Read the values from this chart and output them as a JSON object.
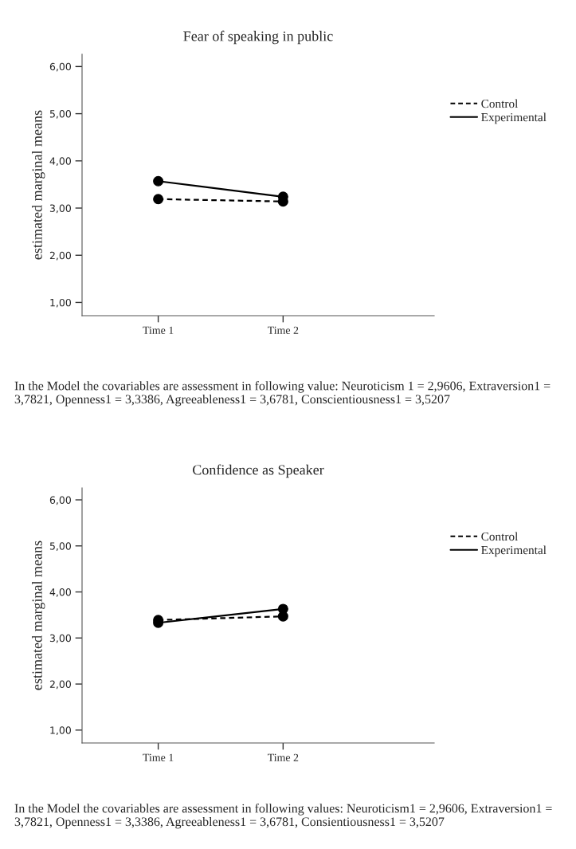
{
  "chart_data": [
    {
      "type": "line",
      "title": "Fear of speaking in public",
      "ylabel": "estimated marginal means",
      "categories": [
        "Time 1",
        "Time 2"
      ],
      "series": [
        {
          "name": "Control",
          "color": "#000000",
          "line_style": "dashed",
          "values": [
            3.19,
            3.14
          ]
        },
        {
          "name": "Experimental",
          "color": "#000000",
          "line_style": "solid",
          "values": [
            3.57,
            3.24
          ]
        }
      ],
      "ylim": [
        0.72,
        6.26
      ],
      "yticks": [
        {
          "value": 1,
          "label": "1,00"
        },
        {
          "value": 2,
          "label": "2,00"
        },
        {
          "value": 3,
          "label": "3,00"
        },
        {
          "value": 4,
          "label": "4,00"
        },
        {
          "value": 5,
          "label": "5,00"
        },
        {
          "value": 6,
          "label": "6,00"
        }
      ],
      "marker": "circle",
      "legend": "top right",
      "grid": false,
      "annotations": [
        "In the Model the covariables are assessment in following value: Neuroticism 1 = 2,9606, Extraversion1 = 3,7821, Openness1 = 3,3386, Agreeableness1 = 3,6781, Conscientiousness1 = 3,5207"
      ]
    },
    {
      "type": "line",
      "title": "Confidence as Speaker",
      "ylabel": "estimated marginal means",
      "categories": [
        "Time 1",
        "Time 2"
      ],
      "series": [
        {
          "name": "Control",
          "color": "#000000",
          "line_style": "dashed",
          "values": [
            3.39,
            3.47
          ]
        },
        {
          "name": "Experimental",
          "color": "#000000",
          "line_style": "solid",
          "values": [
            3.33,
            3.63
          ]
        }
      ],
      "ylim": [
        0.72,
        6.26
      ],
      "yticks": [
        {
          "value": 1,
          "label": "1,00"
        },
        {
          "value": 2,
          "label": "2,00"
        },
        {
          "value": 3,
          "label": "3,00"
        },
        {
          "value": 4,
          "label": "4,00"
        },
        {
          "value": 5,
          "label": "5,00"
        },
        {
          "value": 6,
          "label": "6,00"
        }
      ],
      "marker": "circle",
      "legend": "top right",
      "grid": false,
      "annotations": [
        "In the Model the covariables are assessment in following values: Neuroticism1 = 2,9606, Extraversion1 = 3,7821, Openness1 = 3,3386, Agreeableness1 = 3,6781, Consientiousness1 = 3,5207"
      ]
    }
  ]
}
